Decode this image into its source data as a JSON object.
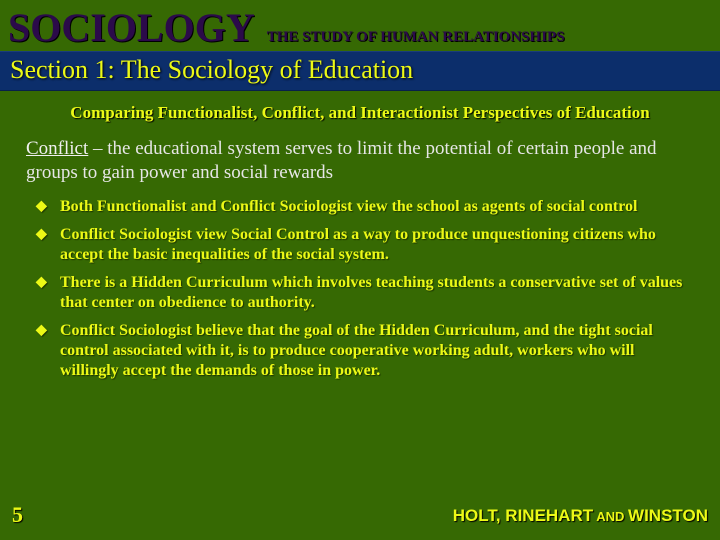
{
  "header": {
    "title": "SOCIOLOGY",
    "subtitle": "THE STUDY OF HUMAN RELATIONSHIPS"
  },
  "section": {
    "title": "Section 1: The Sociology of Education"
  },
  "content": {
    "comparing": "Comparing Functionalist, Conflict, and Interactionist Perspectives of Education",
    "conflict_label": "Conflict",
    "conflict_text": " – the educational system serves to limit the potential of certain people and groups to gain power and social rewards",
    "bullets": [
      "Both Functionalist and Conflict Sociologist view the school as agents of social control",
      "Conflict Sociologist view Social Control as a way to produce unquestioning citizens who accept the basic inequalities of the social system.",
      "There is a Hidden Curriculum which involves teaching students a conservative set of values that center on obedience to authority.",
      "Conflict Sociologist believe that the goal of the Hidden Curriculum, and the tight social control associated with it, is to produce cooperative working adult, workers who will willingly accept the demands of those in power."
    ]
  },
  "footer": {
    "page": "5",
    "publisher_1": "HOLT, RINEHART",
    "publisher_and": " AND ",
    "publisher_2": "WINSTON"
  },
  "colors": {
    "background": "#366903",
    "section_bar": "#0c2e6b",
    "yellow": "#ecf916",
    "dark_purple": "#2b0a4a",
    "light_text": "#e6e6e6"
  }
}
